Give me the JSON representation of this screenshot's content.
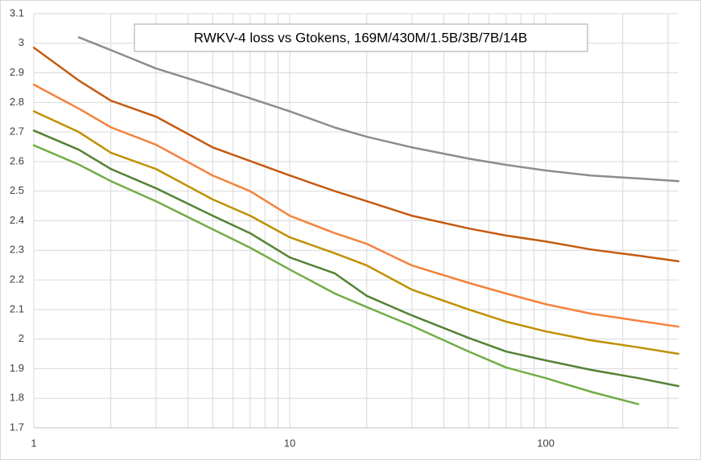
{
  "chart_data": {
    "type": "line",
    "title": "RWKV-4 loss vs Gtokens, 169M/430M/1.5B/3B/7B/14B",
    "x": [
      1,
      1.5,
      2,
      3,
      5,
      7,
      10,
      15,
      20,
      30,
      50,
      70,
      100,
      150,
      230,
      330
    ],
    "xscale": "log",
    "xlim": [
      1,
      330
    ],
    "xticks": [
      1,
      10,
      100
    ],
    "xminorticks": [
      2,
      3,
      4,
      5,
      6,
      7,
      8,
      9,
      20,
      30,
      40,
      50,
      60,
      70,
      80,
      90,
      200,
      300
    ],
    "ylim": [
      1.7,
      3.1
    ],
    "yticks": [
      1.7,
      1.8,
      1.9,
      2,
      2.1,
      2.2,
      2.3,
      2.4,
      2.5,
      2.6,
      2.7,
      2.8,
      2.9,
      3,
      3.1
    ],
    "grid": true,
    "series": [
      {
        "color": "#8c8c8c",
        "values": [
          null,
          3.02,
          2.977,
          2.915,
          2.855,
          2.814,
          2.77,
          2.715,
          2.684,
          2.648,
          2.61,
          2.589,
          2.57,
          2.553,
          2.543,
          2.534
        ]
      },
      {
        "color": "#c55a11",
        "values": [
          2.985,
          2.874,
          2.806,
          2.752,
          2.648,
          2.602,
          2.553,
          2.5,
          2.466,
          2.417,
          2.374,
          2.35,
          2.33,
          2.303,
          2.282,
          2.263
        ]
      },
      {
        "color": "#f4823c",
        "values": [
          2.86,
          2.779,
          2.716,
          2.657,
          2.553,
          2.5,
          2.417,
          2.358,
          2.322,
          2.249,
          2.19,
          2.154,
          2.118,
          2.086,
          2.062,
          2.042
        ]
      },
      {
        "color": "#bf9000",
        "values": [
          2.77,
          2.7,
          2.63,
          2.575,
          2.472,
          2.417,
          2.344,
          2.29,
          2.249,
          2.167,
          2.1,
          2.059,
          2.026,
          1.996,
          1.972,
          1.95
        ]
      },
      {
        "color": "#548235",
        "values": [
          2.705,
          2.64,
          2.575,
          2.51,
          2.417,
          2.358,
          2.276,
          2.222,
          2.146,
          2.08,
          2.004,
          1.958,
          1.928,
          1.896,
          1.868,
          1.841
        ]
      },
      {
        "color": "#70ad47",
        "values": [
          2.655,
          2.59,
          2.534,
          2.466,
          2.371,
          2.309,
          2.235,
          2.154,
          2.108,
          2.045,
          1.958,
          1.904,
          1.868,
          1.822,
          1.78,
          null
        ]
      }
    ]
  }
}
